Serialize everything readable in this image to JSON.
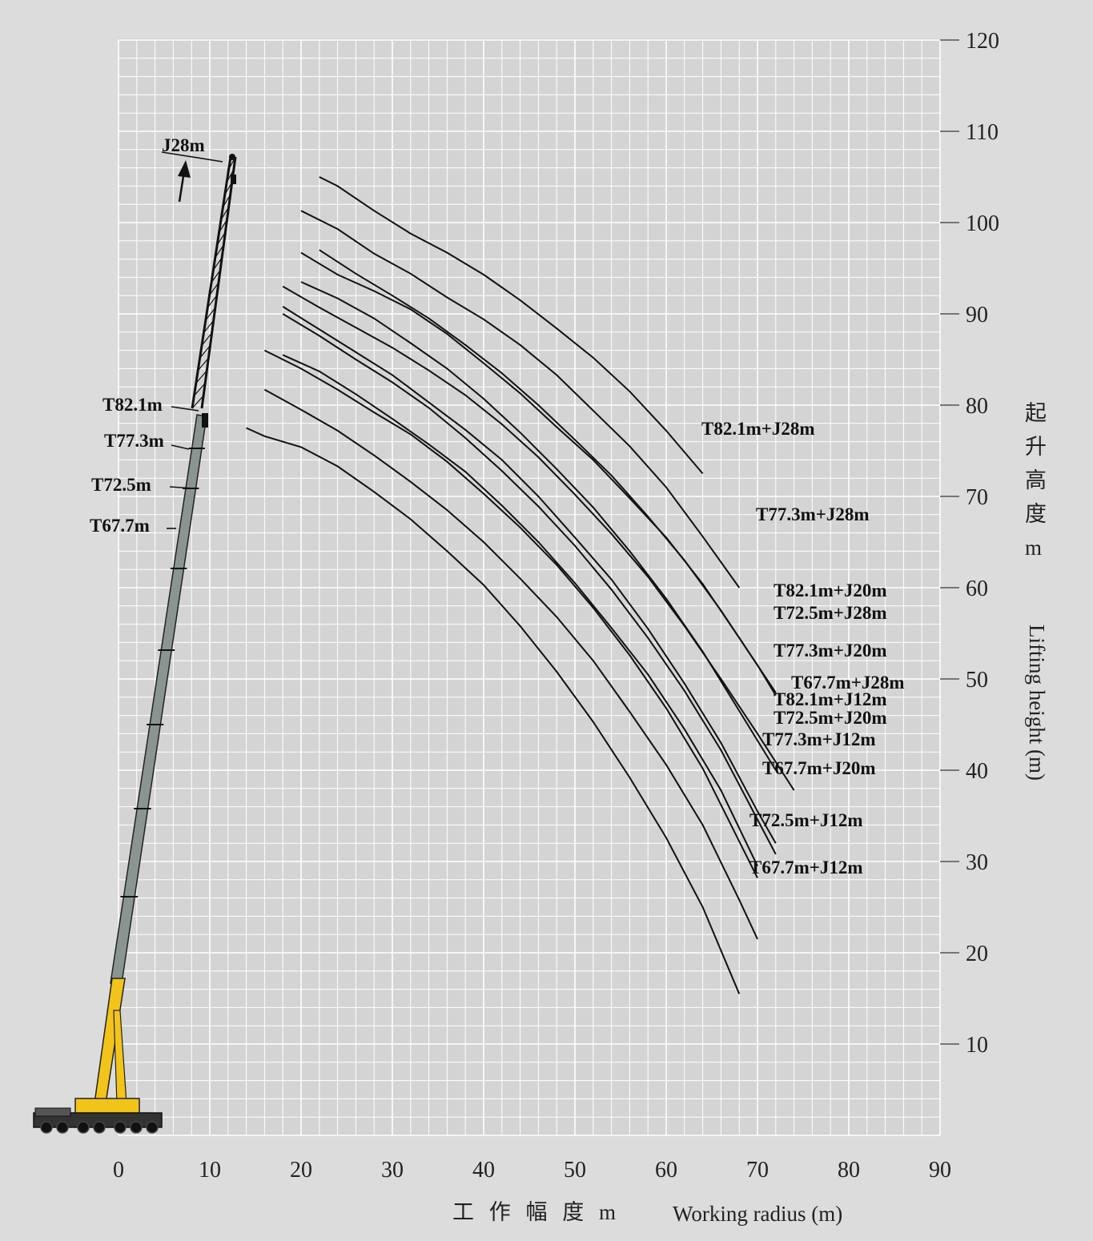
{
  "chart_data": {
    "type": "line",
    "title": "",
    "xlabel_cn": "工 作 幅 度 m",
    "xlabel_en": "Working radius (m)",
    "ylabel_cn": [
      "起",
      "升",
      "高",
      "度",
      "m"
    ],
    "ylabel_en": "Lifting height (m)",
    "xlim": [
      -13,
      90
    ],
    "ylim": [
      0,
      120
    ],
    "xticks": [
      0,
      10,
      20,
      30,
      40,
      50,
      60,
      70,
      80,
      90
    ],
    "yticks": [
      10,
      20,
      30,
      40,
      50,
      60,
      70,
      80,
      90,
      100,
      110,
      120
    ],
    "grid": true,
    "colors": {
      "background": "#dcdcdc",
      "plot": "#d4d4d4",
      "grid": "#ffffff",
      "line": "#111111",
      "boom": "#8a9590",
      "crane_yellow": "#f2c41a"
    },
    "boom_labels": [
      {
        "text": "J28m"
      },
      {
        "text": "T82.1m"
      },
      {
        "text": "T77.3m"
      },
      {
        "text": "T72.5m"
      },
      {
        "text": "T67.7m"
      }
    ],
    "series": [
      {
        "name": "T82.1m+J28m",
        "x": [
          22,
          24,
          28,
          32,
          36,
          40,
          44,
          48,
          52,
          56,
          60,
          64
        ],
        "y": [
          105,
          104,
          101.3,
          98.8,
          96.7,
          94.3,
          91.5,
          88.4,
          85.2,
          81.5,
          77.2,
          72.5
        ]
      },
      {
        "name": "T77.3m+J28m",
        "x": [
          20,
          24,
          28,
          32,
          36,
          40,
          44,
          48,
          52,
          56,
          60,
          64,
          68
        ],
        "y": [
          101.3,
          99.3,
          96.6,
          94.4,
          91.8,
          89.4,
          86.6,
          83.3,
          79.4,
          75.5,
          71,
          65.6,
          60
        ]
      },
      {
        "name": "T82.1m+J20m",
        "x": [
          20,
          24,
          28,
          32,
          36,
          40,
          44,
          48,
          52,
          56,
          60,
          64,
          68,
          72
        ],
        "y": [
          96.7,
          94.3,
          92.5,
          90.5,
          87.8,
          84.6,
          81.3,
          77.6,
          74,
          69.8,
          65.5,
          60.4,
          54.5,
          48.5
        ]
      },
      {
        "name": "T72.5m+J28m",
        "x": [
          22,
          26,
          30,
          34,
          38,
          42,
          46,
          50,
          54,
          58,
          62,
          66,
          70,
          72
        ],
        "y": [
          97,
          94.4,
          92,
          89.5,
          86.6,
          83.5,
          80,
          76.2,
          72.3,
          67.8,
          63,
          57.5,
          51.5,
          48.2
        ]
      },
      {
        "name": "T77.3m+J20m",
        "x": [
          20,
          24,
          28,
          32,
          36,
          40,
          44,
          48,
          52,
          56,
          60,
          64,
          68,
          72
        ],
        "y": [
          93.5,
          91.7,
          89.5,
          86.8,
          84,
          80.7,
          77,
          73,
          68.8,
          64,
          58.8,
          53,
          46.5,
          40
        ]
      },
      {
        "name": "T67.7m+J28m",
        "x": [
          18,
          22,
          26,
          30,
          34,
          38,
          42,
          46,
          50,
          54,
          58,
          62,
          66,
          70,
          74
        ],
        "y": [
          93,
          90.7,
          88.5,
          86.3,
          83.8,
          81.1,
          77.9,
          74.3,
          70.2,
          65.9,
          61.2,
          55.8,
          50,
          44,
          37.8
        ]
      },
      {
        "name": "T82.1m+J12m",
        "x": [
          18,
          22,
          26,
          30,
          34,
          38,
          42,
          46,
          50,
          54,
          58,
          62,
          66,
          70,
          72
        ],
        "y": [
          90.8,
          88.3,
          85.8,
          83.3,
          80.3,
          77.3,
          74,
          70,
          65.5,
          60.9,
          55.5,
          49.5,
          43,
          35.5,
          32
        ]
      },
      {
        "name": "T72.5m+J20m",
        "x": [
          18,
          22,
          26,
          30,
          34,
          38,
          42,
          46,
          50,
          54,
          58,
          62,
          66,
          70,
          72
        ],
        "y": [
          90,
          87.6,
          85,
          82.5,
          79.7,
          76.4,
          72.8,
          68.9,
          64.6,
          59.8,
          54.5,
          48.7,
          42.2,
          34.6,
          30.8
        ]
      },
      {
        "name": "T77.3m+J12m",
        "x": [
          16,
          20,
          24,
          28,
          32,
          36,
          40,
          44,
          48,
          52,
          56,
          60,
          64,
          68,
          70
        ],
        "y": [
          86,
          84,
          81.7,
          79.2,
          76.8,
          73.8,
          70.3,
          66.6,
          62.5,
          57.8,
          52.6,
          46.8,
          40.2,
          32.2,
          28.2
        ]
      },
      {
        "name": "T67.7m+J20m",
        "x": [
          18,
          22,
          26,
          30,
          34,
          38,
          42,
          46,
          50,
          54,
          58,
          62,
          66,
          70
        ],
        "y": [
          85.5,
          83.7,
          81.2,
          78.5,
          75.7,
          72.7,
          69,
          65,
          60.5,
          55.6,
          50.5,
          44.5,
          37.8,
          29.5
        ]
      },
      {
        "name": "T72.5m+J12m",
        "x": [
          16,
          20,
          24,
          28,
          32,
          36,
          40,
          44,
          48,
          52,
          56,
          60,
          64,
          68,
          70
        ],
        "y": [
          81.7,
          79.5,
          77.2,
          74.5,
          71.6,
          68.5,
          65,
          61,
          56.8,
          52,
          46.4,
          40.6,
          34,
          25.8,
          21.5
        ]
      },
      {
        "name": "T67.7m+J12m",
        "x": [
          14,
          16,
          20,
          24,
          28,
          32,
          36,
          40,
          44,
          48,
          52,
          56,
          60,
          64,
          68
        ],
        "y": [
          77.5,
          76.6,
          75.4,
          73.3,
          70.5,
          67.5,
          64,
          60.3,
          55.8,
          50.8,
          45.3,
          39.2,
          32.6,
          25,
          15.5
        ]
      }
    ]
  }
}
